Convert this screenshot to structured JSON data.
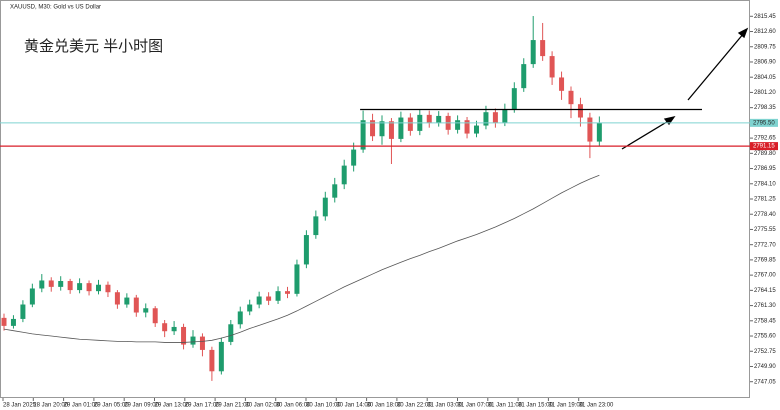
{
  "chart_data": {
    "type": "candlestick",
    "title": "XAUUSD, M30: Gold vs US Dollar",
    "annotation": "黄金兑美元 半小时图",
    "open": [
      2759.0,
      2757.5,
      2758.8,
      2761.5,
      2764.5,
      2766.0,
      2764.8,
      2765.9,
      2764.2,
      2765.5,
      2764.0,
      2765.2,
      2763.8,
      2761.5,
      2762.8,
      2760.0,
      2760.8,
      2758.0,
      2756.5,
      2757.3,
      2754.0,
      2755.5,
      2753.0,
      2749.0,
      2754.5,
      2757.8,
      2760.2,
      2761.5,
      2763.0,
      2762.2,
      2764.0,
      2763.5,
      2769.0,
      2774.5,
      2778.0,
      2781.5,
      2784.0,
      2787.5,
      2790.5,
      2796.0,
      2793.0,
      2795.8,
      2792.5,
      2796.5,
      2794.0,
      2797.0,
      2795.5,
      2796.8,
      2794.2,
      2796.0,
      2793.5,
      2795.0,
      2797.5,
      2795.5,
      2798.0,
      2802.0,
      2806.5,
      2811.0,
      2808.0,
      2804.0,
      2801.5,
      2799.0,
      2796.5,
      2792.0
    ],
    "high": [
      2759.8,
      2759.5,
      2762.3,
      2765.4,
      2767.2,
      2766.6,
      2766.8,
      2766.3,
      2766.4,
      2766.0,
      2766.1,
      2765.8,
      2764.2,
      2763.6,
      2763.3,
      2761.7,
      2761.2,
      2758.6,
      2758.4,
      2757.9,
      2756.7,
      2756.1,
      2753.6,
      2755.3,
      2758.6,
      2761.1,
      2762.4,
      2763.9,
      2763.8,
      2764.9,
      2764.8,
      2769.9,
      2775.4,
      2779.1,
      2782.6,
      2785.2,
      2788.6,
      2791.8,
      2797.8,
      2797.2,
      2796.9,
      2796.4,
      2797.6,
      2797.3,
      2798.1,
      2797.8,
      2797.7,
      2797.4,
      2796.9,
      2796.6,
      2795.9,
      2798.7,
      2798.2,
      2799.1,
      2803.1,
      2807.6,
      2815.5,
      2814.2,
      2808.9,
      2805.1,
      2802.3,
      2800.2,
      2797.4,
      2796.7
    ],
    "low": [
      2756.6,
      2757.0,
      2758.2,
      2761.0,
      2763.8,
      2763.9,
      2764.1,
      2763.5,
      2763.6,
      2763.2,
      2763.4,
      2762.9,
      2760.7,
      2760.9,
      2759.2,
      2759.1,
      2757.3,
      2755.4,
      2755.8,
      2753.1,
      2753.4,
      2751.8,
      2747.2,
      2748.4,
      2753.9,
      2757.0,
      2759.5,
      2760.8,
      2761.4,
      2761.6,
      2762.7,
      2763.0,
      2768.3,
      2773.8,
      2777.2,
      2780.6,
      2783.1,
      2786.4,
      2789.9,
      2792.1,
      2791.4,
      2787.8,
      2791.9,
      2793.1,
      2793.2,
      2794.6,
      2794.8,
      2793.3,
      2793.5,
      2792.6,
      2792.8,
      2794.3,
      2794.6,
      2794.9,
      2797.4,
      2801.3,
      2805.8,
      2807.1,
      2802.6,
      2799.8,
      2796.4,
      2794.8,
      2788.9,
      2791.1
    ],
    "close": [
      2757.5,
      2758.8,
      2761.5,
      2764.5,
      2766.0,
      2764.8,
      2765.9,
      2764.2,
      2765.5,
      2764.0,
      2765.2,
      2763.8,
      2761.5,
      2762.8,
      2760.0,
      2760.8,
      2758.0,
      2756.5,
      2757.3,
      2754.0,
      2755.5,
      2753.0,
      2749.0,
      2754.5,
      2757.8,
      2760.2,
      2761.5,
      2763.0,
      2762.2,
      2764.0,
      2763.5,
      2769.0,
      2774.5,
      2778.0,
      2781.5,
      2784.0,
      2787.5,
      2790.5,
      2796.0,
      2793.0,
      2795.8,
      2792.5,
      2796.5,
      2794.0,
      2797.0,
      2795.5,
      2796.8,
      2794.2,
      2796.0,
      2793.5,
      2795.0,
      2797.5,
      2795.5,
      2798.0,
      2802.0,
      2806.5,
      2811.0,
      2808.0,
      2804.0,
      2801.5,
      2799.0,
      2796.5,
      2792.0,
      2795.5
    ],
    "ma": [
      2756.9,
      2756.6,
      2756.3,
      2756.0,
      2755.8,
      2755.6,
      2755.4,
      2755.2,
      2755.0,
      2754.9,
      2754.8,
      2754.7,
      2754.6,
      2754.6,
      2754.5,
      2754.5,
      2754.5,
      2754.4,
      2754.4,
      2754.4,
      2754.5,
      2754.6,
      2754.8,
      2755.2,
      2755.7,
      2756.3,
      2757.0,
      2757.6,
      2758.2,
      2758.8,
      2759.5,
      2760.3,
      2761.2,
      2762.1,
      2763.0,
      2763.9,
      2764.8,
      2765.6,
      2766.4,
      2767.2,
      2768.0,
      2768.7,
      2769.4,
      2770.1,
      2770.7,
      2771.4,
      2772.0,
      2772.7,
      2773.4,
      2774.0,
      2774.6,
      2775.3,
      2776.0,
      2776.8,
      2777.6,
      2778.5,
      2779.4,
      2780.4,
      2781.4,
      2782.4,
      2783.3,
      2784.2,
      2785.0,
      2785.7
    ],
    "up_color": "#1e9c6d",
    "down_color": "#e05555",
    "ma_color": "#555555",
    "time_labels": [
      "28 Jan 2025",
      "28 Jan 20:00",
      "29 Jan 01:00",
      "29 Jan 05:00",
      "29 Jan 09:00",
      "29 Jan 13:00",
      "29 Jan 17:00",
      "29 Jan 21:00",
      "30 Jan 02:00",
      "30 Jan 06:00",
      "30 Jan 10:00",
      "30 Jan 14:00",
      "30 Jan 18:00",
      "30 Jan 22:00",
      "31 Jan 03:00",
      "31 Jan 07:00",
      "31 Jan 11:00",
      "31 Jan 15:00",
      "31 Jan 19:00",
      "31 Jan 23:00"
    ],
    "ylim": [
      2744,
      2818.5
    ],
    "yticks": [
      {
        "value": 2815.45,
        "label": "2815.45"
      },
      {
        "value": 2812.6,
        "label": "2812.60"
      },
      {
        "value": 2809.75,
        "label": "2809.75"
      },
      {
        "value": 2806.9,
        "label": "2806.90"
      },
      {
        "value": 2804.05,
        "label": "2804.05"
      },
      {
        "value": 2801.2,
        "label": "2801.20"
      },
      {
        "value": 2798.35,
        "label": "2798.35"
      },
      {
        "value": 2792.65,
        "label": "2792.65"
      },
      {
        "value": 2789.8,
        "label": "2789.80"
      },
      {
        "value": 2786.95,
        "label": "2786.95"
      },
      {
        "value": 2784.1,
        "label": "2784.10"
      },
      {
        "value": 2781.25,
        "label": "2781.25"
      },
      {
        "value": 2778.4,
        "label": "2778.40"
      },
      {
        "value": 2775.55,
        "label": "2775.55"
      },
      {
        "value": 2772.7,
        "label": "2772.70"
      },
      {
        "value": 2769.85,
        "label": "2769.85"
      },
      {
        "value": 2767,
        "label": "2767.00"
      },
      {
        "value": 2764.15,
        "label": "2764.15"
      },
      {
        "value": 2761.3,
        "label": "2761.30"
      },
      {
        "value": 2758.45,
        "label": "2758.45"
      },
      {
        "value": 2755.6,
        "label": "2755.60"
      },
      {
        "value": 2752.75,
        "label": "2752.75"
      },
      {
        "value": 2749.9,
        "label": "2749.90"
      },
      {
        "value": 2747.05,
        "label": "2747.05"
      }
    ],
    "resistance": {
      "value": 2798.0,
      "color": "#000000"
    },
    "support": {
      "value": 2791.15,
      "label": "2791.15",
      "color": "#d81e28"
    },
    "current": {
      "value": 2795.5,
      "label": "2795.50",
      "color": "#7fd3d0"
    }
  }
}
